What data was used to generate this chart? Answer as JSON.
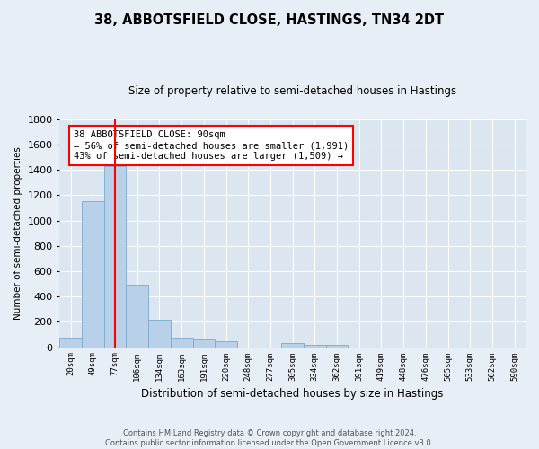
{
  "title": "38, ABBOTSFIELD CLOSE, HASTINGS, TN34 2DT",
  "subtitle": "Size of property relative to semi-detached houses in Hastings",
  "xlabel": "Distribution of semi-detached houses by size in Hastings",
  "ylabel": "Number of semi-detached properties",
  "bar_labels": [
    "20sqm",
    "49sqm",
    "77sqm",
    "106sqm",
    "134sqm",
    "163sqm",
    "191sqm",
    "220sqm",
    "248sqm",
    "277sqm",
    "305sqm",
    "334sqm",
    "362sqm",
    "391sqm",
    "419sqm",
    "448sqm",
    "476sqm",
    "505sqm",
    "533sqm",
    "562sqm",
    "590sqm"
  ],
  "bar_values": [
    75,
    1150,
    1430,
    490,
    215,
    75,
    60,
    50,
    0,
    0,
    30,
    20,
    15,
    0,
    0,
    0,
    0,
    0,
    0,
    0,
    0
  ],
  "bar_color": "#b8d0e8",
  "bar_edge_color": "#7aaad0",
  "vline_x": 2.5,
  "vline_color": "red",
  "annotation_title": "38 ABBOTSFIELD CLOSE: 90sqm",
  "annotation_line1": "← 56% of semi-detached houses are smaller (1,991)",
  "annotation_line2": "43% of semi-detached houses are larger (1,509) →",
  "ylim": [
    0,
    1800
  ],
  "yticks": [
    0,
    200,
    400,
    600,
    800,
    1000,
    1200,
    1400,
    1600,
    1800
  ],
  "bg_color": "#e8eef5",
  "plot_bg_color": "#dce6f0",
  "footer": "Contains HM Land Registry data © Crown copyright and database right 2024.\nContains public sector information licensed under the Open Government Licence v3.0."
}
